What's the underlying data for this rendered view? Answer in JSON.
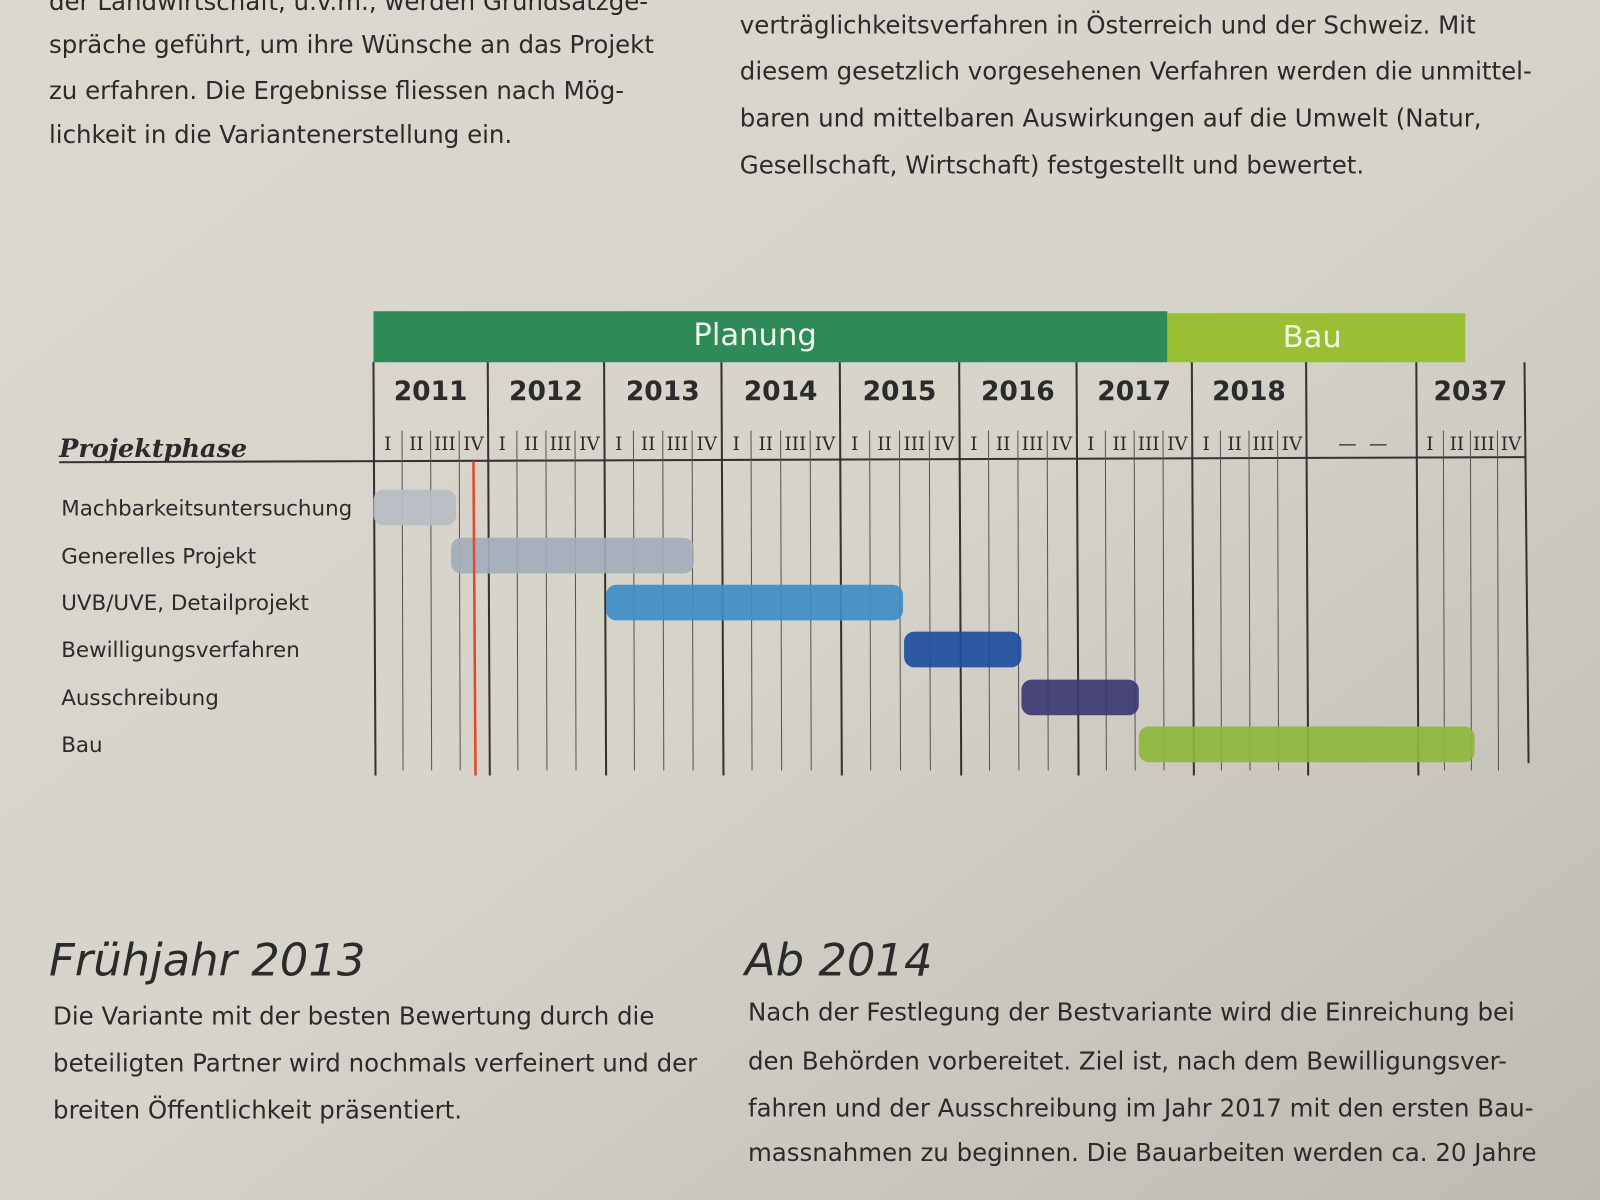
{
  "top_left": {
    "lines": [
      "der Landwirtschaft, u.v.m., werden Grundsatzge-",
      "spräche geführt, um ihre Wünsche an das Projekt",
      "zu erfahren. Die Ergebnisse fliessen nach Mög-",
      "lichkeit in die Variantenerstellung ein."
    ]
  },
  "top_right": {
    "lines": [
      "verträglichkeitsverfahren in Österreich und der Schweiz. Mit",
      "diesem gesetzlich vorgesehenen Verfahren werden die unmittel-",
      "baren und mittelbaren Auswirkungen auf die Umwelt (Natur,",
      "Gesellschaft, Wirtschaft) festgestellt und bewertet."
    ]
  },
  "gantt": {
    "planning_header": "Planung",
    "build_header": "Bau",
    "row_label": "Projektphase",
    "columns": [
      {
        "year": "2011",
        "quarters": [
          "I",
          "II",
          "III",
          "IV"
        ]
      },
      {
        "year": "2012",
        "quarters": [
          "I",
          "II",
          "III",
          "IV"
        ]
      },
      {
        "year": "2013",
        "quarters": [
          "I",
          "II",
          "III",
          "IV"
        ]
      },
      {
        "year": "2014",
        "quarters": [
          "I",
          "II",
          "III",
          "IV"
        ]
      },
      {
        "year": "2015",
        "quarters": [
          "I",
          "II",
          "III",
          "IV"
        ]
      },
      {
        "year": "2016",
        "quarters": [
          "I",
          "II",
          "III",
          "IV"
        ]
      },
      {
        "year": "2017",
        "quarters": [
          "I",
          "II",
          "III",
          "IV"
        ]
      },
      {
        "year": "2018",
        "quarters": [
          "I",
          "II",
          "III",
          "IV"
        ]
      },
      {
        "quarters": [
          "—",
          "—"
        ]
      },
      {
        "year": "2037",
        "quarters": [
          "I",
          "II",
          "III",
          "IV"
        ]
      }
    ],
    "rows": [
      "Machbarkeitsuntersuchung",
      "Generelles Projekt",
      "UVB/UVE, Detailprojekt",
      "Bewilligungsverfahren",
      "Ausschreibung",
      "Bau"
    ]
  },
  "sections": [
    {
      "heading": "Frühjahr 2013",
      "lines": [
        "Die Variante mit der besten Bewertung durch die",
        "beteiligten Partner wird nochmals verfeinert und der",
        "breiten Öffentlichkeit präsentiert."
      ]
    },
    {
      "heading": "Ab 2014",
      "lines": [
        "Nach der Festlegung der Bestvariante wird die Einreichung bei",
        "den Behörden vorbereitet. Ziel ist, nach dem Bewilligungsver-",
        "fahren und der Ausschreibung im Jahr 2017 mit den ersten Bau-",
        "massnahmen zu beginnen. Die Bauarbeiten werden ca. 20 Jahre"
      ]
    }
  ]
}
